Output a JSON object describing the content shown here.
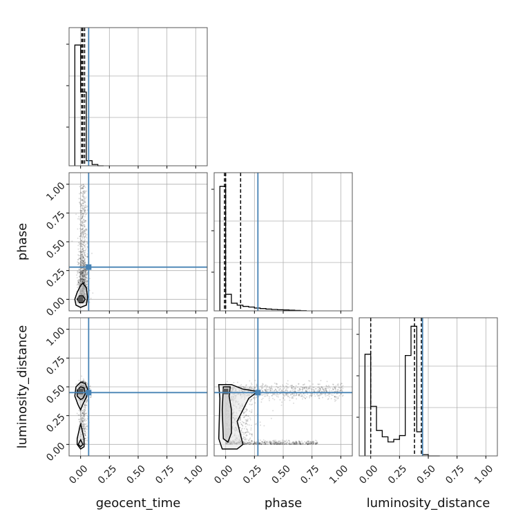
{
  "chart_data": {
    "type": "corner",
    "parameters": [
      "geocent_time",
      "phase",
      "luminosity_distance"
    ],
    "axis_range": [
      -0.1,
      1.1
    ],
    "tick_values": [
      0.0,
      0.25,
      0.5,
      0.75,
      1.0
    ],
    "tick_labels": [
      "0.00",
      "0.25",
      "0.50",
      "0.75",
      "1.00"
    ],
    "grid": true,
    "truth": {
      "geocent_time": 0.07,
      "phase": 0.28,
      "luminosity_distance": 0.45
    },
    "truth_color": "#4682b4",
    "hist_color": "#000000",
    "diagonal": [
      {
        "param": "geocent_time",
        "bin_edges": [
          -0.05,
          0.0,
          0.05,
          0.1,
          0.15,
          0.2
        ],
        "counts": [
          0.95,
          0.58,
          0.04,
          0.01,
          0.0
        ],
        "quantiles": [
          0.01,
          0.02,
          0.035
        ]
      },
      {
        "param": "phase",
        "bin_edges": [
          -0.05,
          0.0,
          0.05,
          0.1,
          0.15,
          0.2,
          0.25,
          0.3,
          0.35,
          0.4,
          0.45,
          0.5,
          0.55,
          0.6,
          0.65,
          0.7
        ],
        "counts": [
          0.98,
          0.13,
          0.06,
          0.045,
          0.035,
          0.03,
          0.022,
          0.018,
          0.014,
          0.011,
          0.009,
          0.007,
          0.005,
          0.003,
          0.001
        ],
        "quantiles": [
          -0.01,
          0.0,
          0.13
        ]
      },
      {
        "param": "luminosity_distance",
        "bin_edges": [
          -0.05,
          0.0,
          0.05,
          0.1,
          0.15,
          0.2,
          0.25,
          0.3,
          0.35,
          0.4,
          0.45,
          0.5,
          0.55,
          0.6
        ],
        "counts": [
          0.8,
          0.39,
          0.2,
          0.15,
          0.11,
          0.13,
          0.16,
          0.79,
          1.02,
          0.19,
          0.01,
          0.0,
          0.0
        ],
        "quantiles": [
          0.0,
          0.38,
          0.44
        ]
      }
    ],
    "contours": [
      {
        "x": "geocent_time",
        "y": "phase",
        "levels": [
          [
            [
              -0.05,
              0.0
            ],
            [
              -0.03,
              0.06
            ],
            [
              0.0,
              0.12
            ],
            [
              0.02,
              0.14
            ],
            [
              0.05,
              0.1
            ],
            [
              0.06,
              0.02
            ],
            [
              0.05,
              -0.05
            ],
            [
              0.0,
              -0.07
            ],
            [
              -0.04,
              -0.05
            ],
            [
              -0.05,
              0.0
            ]
          ],
          [
            [
              -0.03,
              0.0
            ],
            [
              -0.01,
              0.03
            ],
            [
              0.02,
              0.03
            ],
            [
              0.04,
              0.0
            ],
            [
              0.02,
              -0.03
            ],
            [
              -0.01,
              -0.03
            ],
            [
              -0.03,
              0.0
            ]
          ]
        ],
        "mode": [
          0.0,
          0.0
        ]
      },
      {
        "x": "geocent_time",
        "y": "luminosity_distance",
        "levels": [
          [
            [
              -0.04,
              0.5
            ],
            [
              0.0,
              0.54
            ],
            [
              0.04,
              0.53
            ],
            [
              0.06,
              0.48
            ],
            [
              0.05,
              0.41
            ],
            [
              0.02,
              0.35
            ],
            [
              0.0,
              0.3
            ],
            [
              -0.02,
              0.34
            ],
            [
              -0.05,
              0.42
            ],
            [
              -0.04,
              0.5
            ]
          ],
          [
            [
              -0.03,
              0.47
            ],
            [
              0.0,
              0.5
            ],
            [
              0.03,
              0.49
            ],
            [
              0.04,
              0.44
            ],
            [
              0.02,
              0.4
            ],
            [
              0.0,
              0.39
            ],
            [
              -0.03,
              0.42
            ],
            [
              -0.03,
              0.47
            ]
          ],
          [
            [
              -0.03,
              0.0
            ],
            [
              -0.03,
              0.05
            ],
            [
              0.0,
              0.18
            ],
            [
              0.03,
              0.05
            ],
            [
              0.03,
              -0.02
            ],
            [
              0.0,
              -0.04
            ],
            [
              -0.03,
              0.0
            ]
          ],
          [
            [
              -0.02,
              0.0
            ],
            [
              0.0,
              0.04
            ],
            [
              0.02,
              0.0
            ],
            [
              0.0,
              -0.02
            ],
            [
              -0.02,
              0.0
            ]
          ]
        ],
        "mode": [
          0.0,
          0.46
        ]
      },
      {
        "x": "phase",
        "y": "luminosity_distance",
        "levels": [
          [
            [
              -0.06,
              0.52
            ],
            [
              0.05,
              0.52
            ],
            [
              0.15,
              0.48
            ],
            [
              0.28,
              0.46
            ],
            [
              0.2,
              0.4
            ],
            [
              0.1,
              0.2
            ],
            [
              0.15,
              0.0
            ],
            [
              0.1,
              -0.04
            ],
            [
              -0.03,
              -0.04
            ],
            [
              -0.06,
              0.05
            ],
            [
              -0.05,
              0.4
            ],
            [
              -0.06,
              0.52
            ]
          ],
          [
            [
              -0.02,
              0.5
            ],
            [
              0.04,
              0.5
            ],
            [
              0.03,
              0.42
            ],
            [
              0.05,
              0.3
            ],
            [
              0.05,
              0.1
            ],
            [
              0.02,
              0.02
            ],
            [
              -0.02,
              0.05
            ],
            [
              -0.03,
              0.3
            ],
            [
              -0.02,
              0.5
            ]
          ]
        ],
        "mode": [
          0.0,
          0.46
        ]
      }
    ]
  }
}
